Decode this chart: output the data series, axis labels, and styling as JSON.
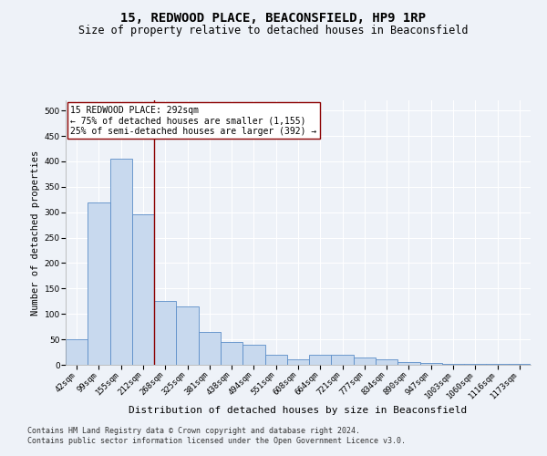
{
  "title": "15, REDWOOD PLACE, BEACONSFIELD, HP9 1RP",
  "subtitle": "Size of property relative to detached houses in Beaconsfield",
  "xlabel": "Distribution of detached houses by size in Beaconsfield",
  "ylabel": "Number of detached properties",
  "footer_line1": "Contains HM Land Registry data © Crown copyright and database right 2024.",
  "footer_line2": "Contains public sector information licensed under the Open Government Licence v3.0.",
  "categories": [
    "42sqm",
    "99sqm",
    "155sqm",
    "212sqm",
    "268sqm",
    "325sqm",
    "381sqm",
    "438sqm",
    "494sqm",
    "551sqm",
    "608sqm",
    "664sqm",
    "721sqm",
    "777sqm",
    "834sqm",
    "890sqm",
    "947sqm",
    "1003sqm",
    "1060sqm",
    "1116sqm",
    "1173sqm"
  ],
  "values": [
    50,
    320,
    405,
    295,
    125,
    115,
    65,
    45,
    40,
    20,
    10,
    20,
    20,
    15,
    10,
    5,
    3,
    2,
    2,
    1,
    1
  ],
  "bar_color": "#c8d9ee",
  "bar_edge_color": "#5b8dc8",
  "vline_x_index": 3.5,
  "vline_color": "#8b0000",
  "annotation_text": "15 REDWOOD PLACE: 292sqm\n← 75% of detached houses are smaller (1,155)\n25% of semi-detached houses are larger (392) →",
  "annotation_box_facecolor": "#ffffff",
  "annotation_box_edgecolor": "#8b0000",
  "ylim": [
    0,
    520
  ],
  "yticks": [
    0,
    50,
    100,
    150,
    200,
    250,
    300,
    350,
    400,
    450,
    500
  ],
  "bg_color": "#eef2f8",
  "grid_color": "#ffffff",
  "title_fontsize": 10,
  "subtitle_fontsize": 8.5,
  "xlabel_fontsize": 8,
  "ylabel_fontsize": 7.5,
  "tick_fontsize": 6.5,
  "annotation_fontsize": 7,
  "footer_fontsize": 6
}
